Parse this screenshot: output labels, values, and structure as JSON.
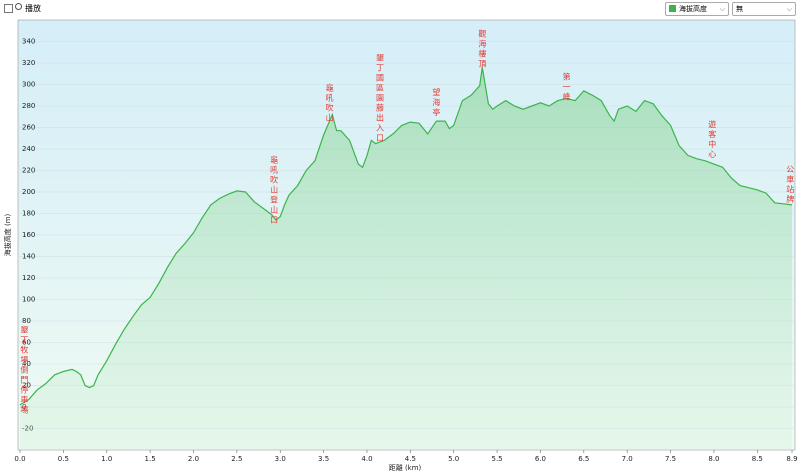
{
  "ui": {
    "play_label": "播放",
    "select_value": "無"
  },
  "chart_data": {
    "type": "area",
    "xlabel": "距離 (km)",
    "ylabel": "海拔高度 (m)",
    "xlim": [
      0,
      8.9
    ],
    "ylim": [
      -40,
      360
    ],
    "xticks": [
      {
        "value": 0,
        "label": "0.0"
      },
      0.5,
      {
        "value": 1,
        "label": "1.0"
      },
      1.5,
      {
        "value": 2,
        "label": "2.0"
      },
      2.5,
      {
        "value": 3,
        "label": "3.0"
      },
      3.5,
      {
        "value": 4,
        "label": "4.0"
      },
      4.5,
      {
        "value": 5,
        "label": "5.0"
      },
      5.5,
      {
        "value": 6,
        "label": "6.0"
      },
      6.5,
      {
        "value": 7,
        "label": "7.0"
      },
      7.5,
      {
        "value": 8,
        "label": "8.0"
      },
      8.5,
      8.9
    ],
    "yticks": [
      -20,
      0,
      20,
      40,
      60,
      80,
      100,
      120,
      140,
      160,
      180,
      200,
      220,
      240,
      260,
      280,
      300,
      320,
      340
    ],
    "grid": true,
    "x": [
      0,
      0.1,
      0.2,
      0.3,
      0.4,
      0.5,
      0.6,
      0.65,
      0.7,
      0.75,
      0.8,
      0.85,
      0.9,
      1.0,
      1.1,
      1.2,
      1.3,
      1.4,
      1.5,
      1.6,
      1.7,
      1.8,
      1.9,
      2.0,
      2.1,
      2.2,
      2.3,
      2.4,
      2.5,
      2.6,
      2.7,
      2.8,
      2.9,
      2.95,
      3.0,
      3.05,
      3.1,
      3.2,
      3.3,
      3.4,
      3.5,
      3.6,
      3.65,
      3.7,
      3.8,
      3.9,
      3.95,
      4.0,
      4.05,
      4.1,
      4.2,
      4.3,
      4.4,
      4.5,
      4.6,
      4.7,
      4.8,
      4.9,
      4.95,
      5.0,
      5.1,
      5.2,
      5.3,
      5.33,
      5.4,
      5.45,
      5.5,
      5.6,
      5.7,
      5.8,
      5.9,
      6.0,
      6.1,
      6.2,
      6.3,
      6.4,
      6.5,
      6.6,
      6.7,
      6.8,
      6.85,
      6.9,
      7.0,
      7.1,
      7.2,
      7.3,
      7.4,
      7.5,
      7.6,
      7.7,
      7.8,
      7.9,
      8.0,
      8.1,
      8.2,
      8.3,
      8.4,
      8.5,
      8.6,
      8.7,
      8.8,
      8.9
    ],
    "series": [
      {
        "name": "海拔高度",
        "color": "#3cb44b",
        "values": [
          2,
          7,
          16,
          22,
          30,
          33,
          35,
          33,
          30,
          20,
          18,
          20,
          30,
          43,
          58,
          72,
          84,
          95,
          102,
          115,
          130,
          143,
          152,
          162,
          176,
          188,
          194,
          198,
          201,
          200,
          191,
          185,
          179,
          174,
          177,
          188,
          197,
          206,
          220,
          229,
          253,
          272,
          257,
          257,
          248,
          226,
          223,
          234,
          248,
          245,
          248,
          254,
          262,
          265,
          264,
          254,
          266,
          266,
          259,
          262,
          285,
          290,
          299,
          316,
          282,
          277,
          280,
          285,
          280,
          277,
          280,
          283,
          280,
          285,
          287,
          285,
          294,
          290,
          285,
          271,
          266,
          277,
          280,
          275,
          285,
          282,
          271,
          262,
          243,
          234,
          231,
          229,
          226,
          223,
          213,
          206,
          204,
          202,
          199,
          190,
          189,
          188
        ]
      }
    ],
    "annotations": [
      {
        "text": "墾丁牧場側門停車場",
        "x": 0.05,
        "y": 76
      },
      {
        "text": "龜吼吹山登山口",
        "x": 2.93,
        "y": 234
      },
      {
        "text": "龜吼吹山",
        "x": 3.57,
        "y": 301
      },
      {
        "text": "墾丁國區園藤出入口",
        "x": 4.15,
        "y": 329
      },
      {
        "text": "望海亭",
        "x": 4.8,
        "y": 297
      },
      {
        "text": "觀海樓頂",
        "x": 5.33,
        "y": 351
      },
      {
        "text": "第一峰",
        "x": 6.3,
        "y": 311
      },
      {
        "text": "遊客中心",
        "x": 7.98,
        "y": 267
      },
      {
        "text": "公車站牌",
        "x": 8.88,
        "y": 225
      }
    ]
  }
}
